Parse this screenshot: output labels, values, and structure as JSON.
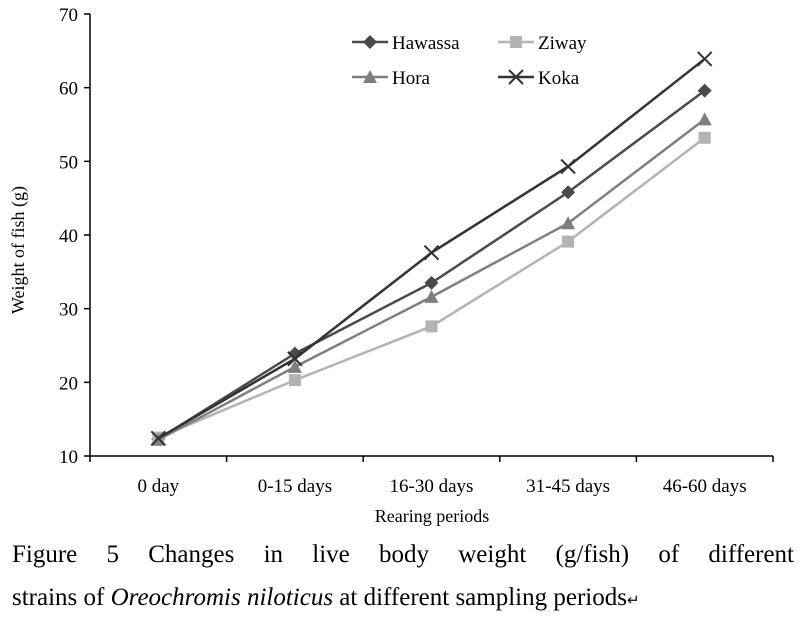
{
  "chart_data": {
    "type": "line",
    "categories": [
      "0 day",
      "0-15 days",
      "16-30 days",
      "31-45 days",
      "46-60 days"
    ],
    "series": [
      {
        "name": "Hawassa",
        "values": [
          12.3,
          23.9,
          33.5,
          45.8,
          59.6
        ],
        "color": "#4a4a4a",
        "marker": "diamond"
      },
      {
        "name": "Ziway",
        "values": [
          12.5,
          20.3,
          27.6,
          39.1,
          53.2
        ],
        "color": "#b3b3b3",
        "marker": "square"
      },
      {
        "name": "Hora",
        "values": [
          12.2,
          22.1,
          31.6,
          41.6,
          55.7
        ],
        "color": "#7f7f7f",
        "marker": "triangle"
      },
      {
        "name": "Koka",
        "values": [
          12.4,
          23.2,
          37.6,
          49.3,
          63.9
        ],
        "color": "#333333",
        "marker": "x"
      }
    ],
    "title": "",
    "xlabel": "Rearing periods",
    "ylabel": "Weight of fish (g)",
    "ylim": [
      10,
      70
    ],
    "yticks": [
      "10",
      "20",
      "30",
      "40",
      "50",
      "60",
      "70"
    ],
    "grid": false,
    "legend_position": "top-center"
  },
  "caption": {
    "line1": "Figure 5 Changes in live body weight (g/fish) of different",
    "line2_before": "strains of ",
    "line2_italic": "Oreochromis niloticus",
    "line2_after": " at different sampling periods",
    "mark": "↵"
  }
}
